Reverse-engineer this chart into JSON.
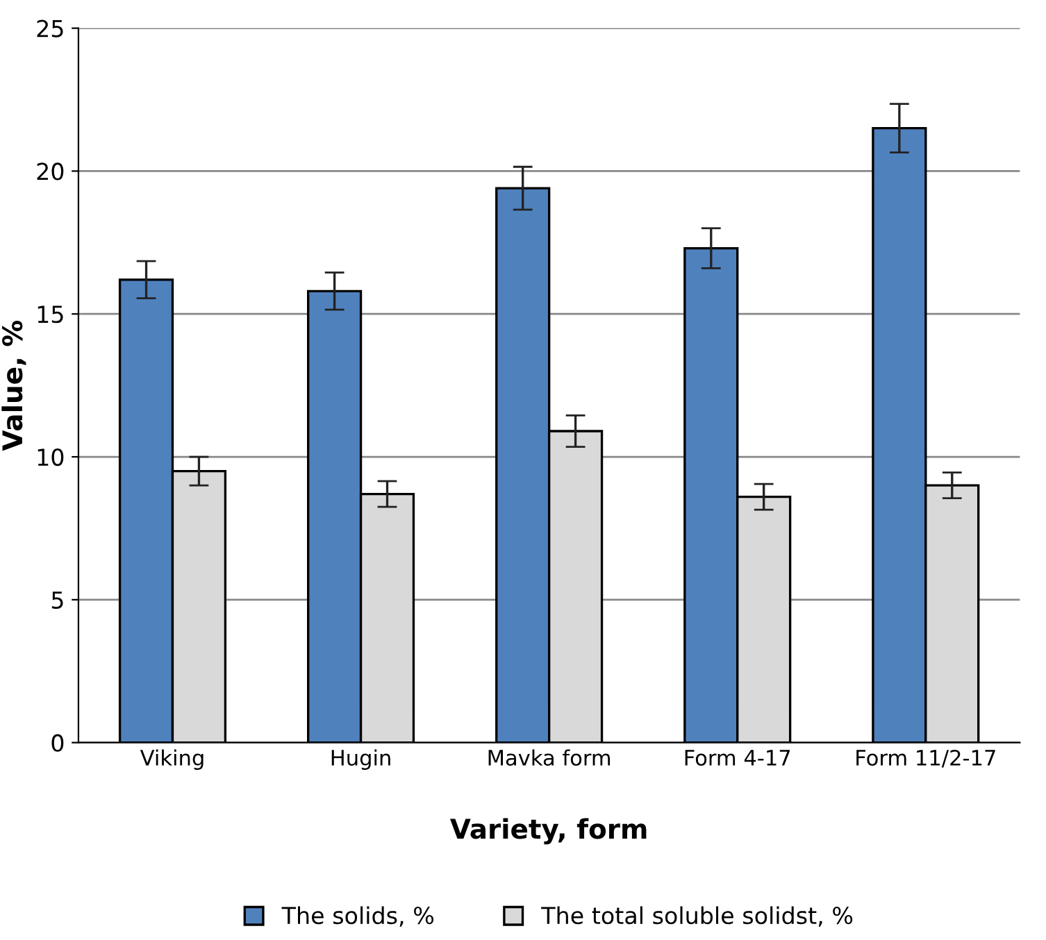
{
  "chart_data": {
    "type": "bar",
    "xlabel": "Variety, form",
    "ylabel": "Value, %",
    "categories": [
      "Viking",
      "Hugin",
      "Mavka form",
      "Form 4-17",
      "Form 11/2-17"
    ],
    "series": [
      {
        "name": "The solids, %",
        "color": "#4f81bd",
        "values": [
          16.2,
          15.8,
          19.4,
          17.3,
          21.5
        ],
        "errors": [
          0.65,
          0.65,
          0.75,
          0.7,
          0.85
        ]
      },
      {
        "name": "The total soluble solidst, %",
        "color": "#d9d9d9",
        "values": [
          9.5,
          8.7,
          10.9,
          8.6,
          9.0
        ],
        "errors": [
          0.5,
          0.45,
          0.55,
          0.45,
          0.45
        ]
      }
    ],
    "ylim": [
      0,
      25
    ],
    "yticks": [
      0,
      5,
      10,
      15,
      20,
      25
    ],
    "grid": "y",
    "legend": "bottom"
  }
}
